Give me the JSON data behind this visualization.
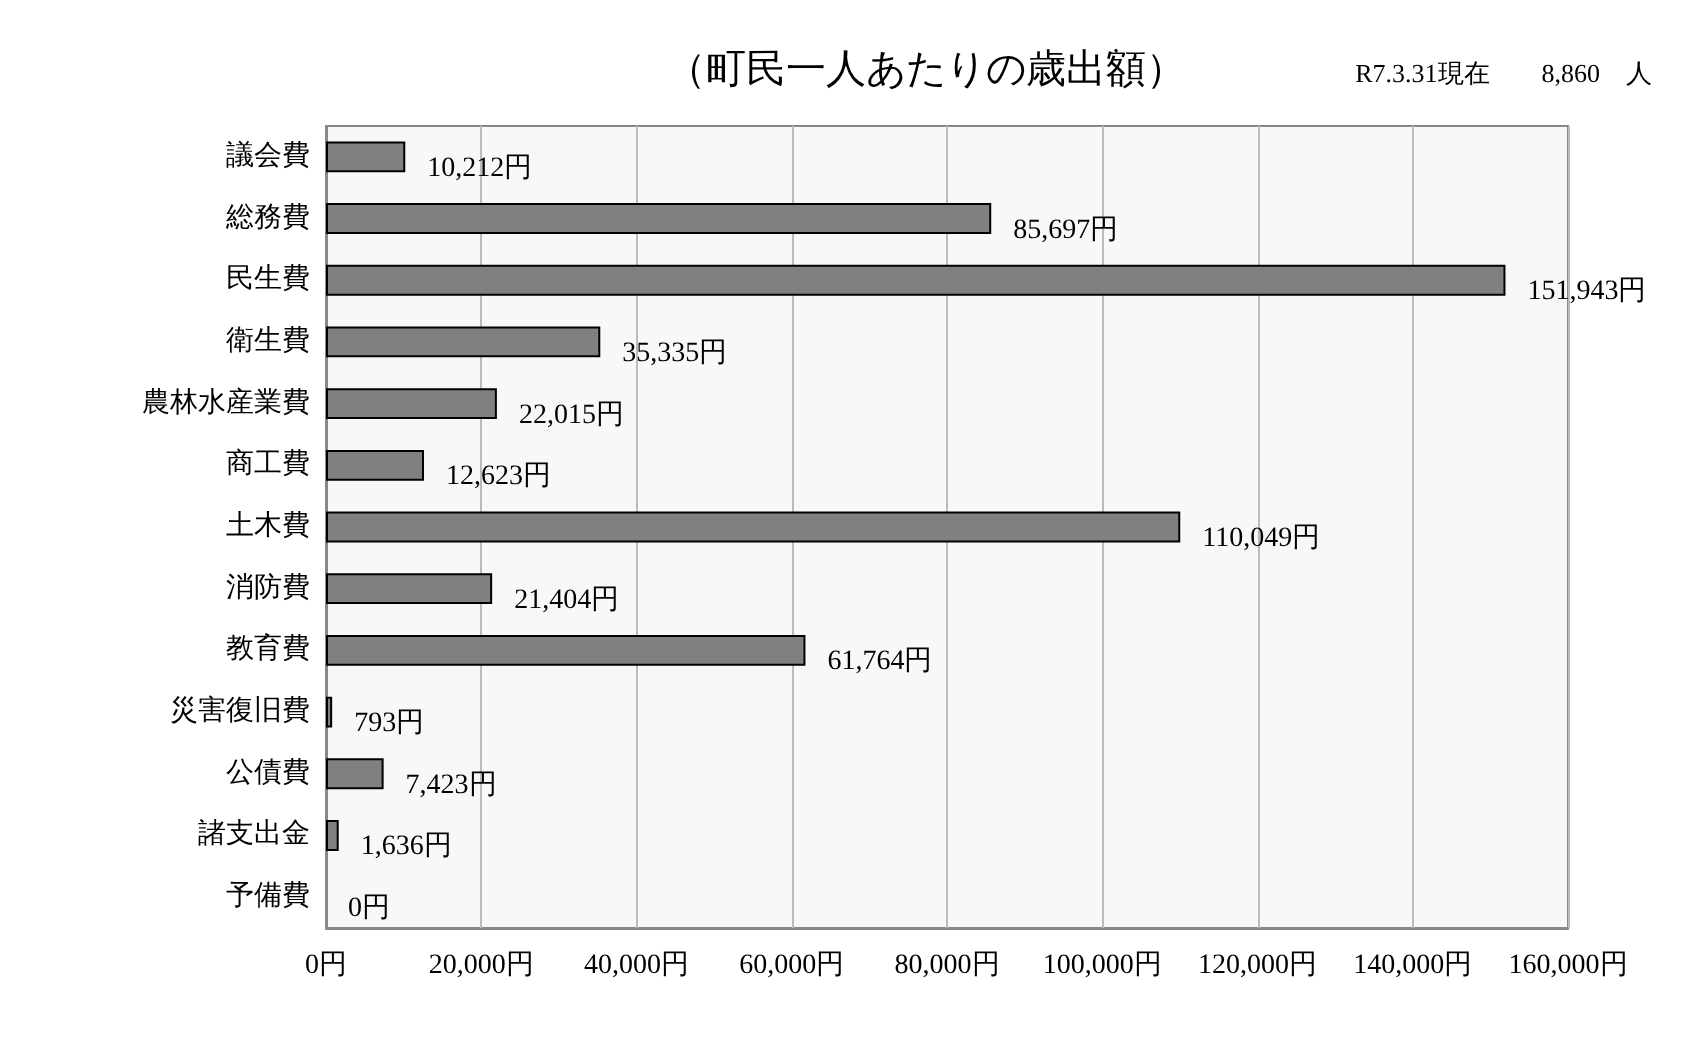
{
  "chart_data": {
    "type": "bar",
    "orientation": "horizontal",
    "title": "（町民一人あたりの歳出額）",
    "annotations": [
      "R7.3.31現在　　8,860　人"
    ],
    "categories": [
      "議会費",
      "総務費",
      "民生費",
      "衛生費",
      "農林水産業費",
      "商工費",
      "土木費",
      "消防費",
      "教育費",
      "災害復旧費",
      "公債費",
      "諸支出金",
      "予備費"
    ],
    "values": [
      10212,
      85697,
      151943,
      35335,
      22015,
      12623,
      110049,
      21404,
      61764,
      793,
      7423,
      1636,
      0
    ],
    "value_labels": [
      "10,212円",
      "85,697円",
      "151,943円",
      "35,335円",
      "22,015円",
      "12,623円",
      "110,049円",
      "21,404円",
      "61,764円",
      "793円",
      "7,423円",
      "1,636円",
      "0円"
    ],
    "color": "#808080",
    "xlim": [
      0,
      160000
    ],
    "xticks": [
      {
        "value": 0,
        "label": "0円"
      },
      {
        "value": 20000,
        "label": "20,000円"
      },
      {
        "value": 40000,
        "label": "40,000円"
      },
      {
        "value": 60000,
        "label": "60,000円"
      },
      {
        "value": 80000,
        "label": "80,000円"
      },
      {
        "value": 100000,
        "label": "100,000円"
      },
      {
        "value": 120000,
        "label": "120,000円"
      },
      {
        "value": 140000,
        "label": "140,000円"
      },
      {
        "value": 160000,
        "label": "160,000円"
      }
    ],
    "grid": "x"
  }
}
